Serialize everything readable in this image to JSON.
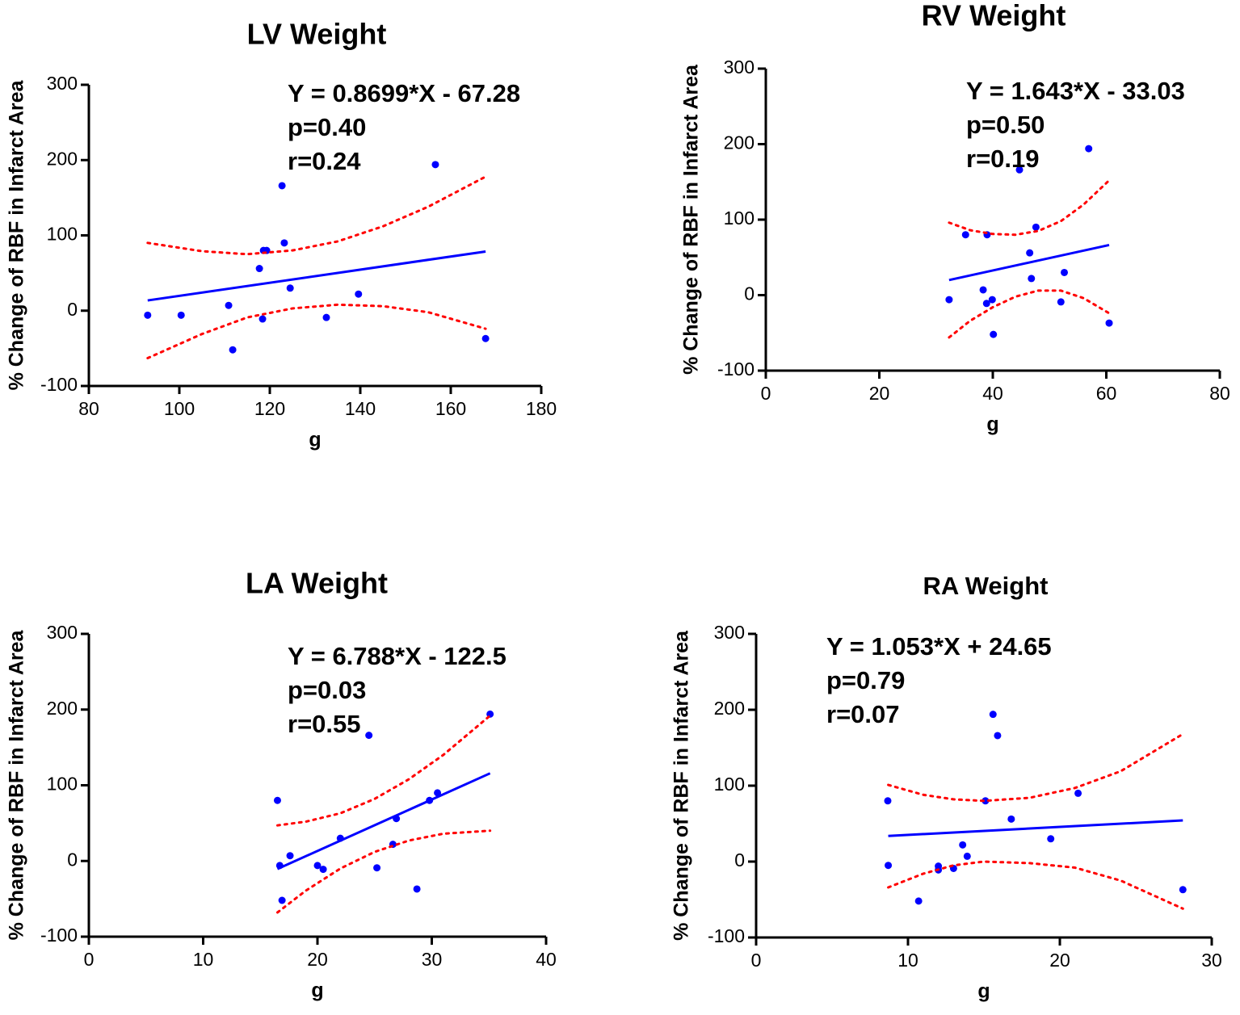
{
  "chart_data": [
    {
      "type": "scatter",
      "title": "LV Weight",
      "xlabel": "g",
      "ylabel": "% Change of RBF in Infarct Area",
      "annotations": [
        "Y = 0.8699*X - 67.28",
        "p=0.40",
        "r=0.24"
      ],
      "xlim": [
        80,
        180
      ],
      "xticks": [
        80,
        100,
        120,
        140,
        160,
        180
      ],
      "ylim": [
        -100,
        300
      ],
      "yticks": [
        -100,
        0,
        100,
        200,
        300
      ],
      "series": [
        {
          "mode": "markers",
          "color": "#0000ff",
          "x": [
            93.0,
            100.4,
            110.9,
            111.8,
            117.7,
            118.4,
            118.6,
            119.3,
            122.7,
            123.2,
            124.5,
            132.5,
            139.6,
            156.6,
            167.7
          ],
          "values": [
            -6,
            -6,
            7,
            -52,
            56,
            -11,
            80,
            80,
            166,
            90,
            30,
            -9,
            22,
            194,
            -37
          ]
        },
        {
          "mode": "line",
          "color": "#0000ff",
          "x": [
            93.0,
            167.7
          ],
          "values": [
            13.6,
            78.6
          ]
        },
        {
          "mode": "dotted",
          "color": "#ff0000",
          "x": [
            93,
            105,
            115,
            125,
            135,
            145,
            155,
            167.7
          ],
          "values": [
            90,
            79,
            75,
            80,
            92,
            112,
            138,
            178
          ]
        },
        {
          "mode": "dotted",
          "color": "#ff0000",
          "x": [
            93,
            105,
            115,
            125,
            135,
            145,
            155,
            167.7
          ],
          "values": [
            -63,
            -31,
            -9,
            3,
            8,
            6,
            -2,
            -24
          ]
        }
      ]
    },
    {
      "type": "scatter",
      "title": "RV Weight",
      "xlabel": "g",
      "ylabel": "% Change of RBF in Infarct Area",
      "annotations": [
        "Y = 1.643*X - 33.03",
        "p=0.50",
        "r=0.19"
      ],
      "xlim": [
        0,
        80
      ],
      "xticks": [
        0,
        20,
        40,
        60,
        80
      ],
      "ylim": [
        -100,
        300
      ],
      "yticks": [
        -100,
        0,
        100,
        200,
        300
      ],
      "series": [
        {
          "mode": "markers",
          "color": "#0000ff",
          "x": [
            32.3,
            35.2,
            38.3,
            38.9,
            39.0,
            39.9,
            40.1,
            44.7,
            46.5,
            46.8,
            47.6,
            52.0,
            52.6,
            56.9,
            60.5
          ],
          "values": [
            -6,
            80,
            7,
            -11,
            80,
            -6,
            -52,
            166,
            56,
            22,
            90,
            -9,
            30,
            194,
            -37
          ]
        },
        {
          "mode": "line",
          "color": "#0000ff",
          "x": [
            32.3,
            60.5
          ],
          "values": [
            20.0,
            66.4
          ]
        },
        {
          "mode": "dotted",
          "color": "#ff0000",
          "x": [
            32.3,
            36,
            40,
            44,
            48,
            52,
            56,
            60.5
          ],
          "values": [
            96,
            86,
            81,
            80,
            85,
            98,
            120,
            152
          ]
        },
        {
          "mode": "dotted",
          "color": "#ff0000",
          "x": [
            32.3,
            36,
            40,
            44,
            48,
            52,
            56,
            60.5
          ],
          "values": [
            -56,
            -34,
            -16,
            -2,
            6,
            6,
            -4,
            -24
          ]
        }
      ]
    },
    {
      "type": "scatter",
      "title": "LA Weight",
      "xlabel": "g",
      "ylabel": "% Change of RBF in Infarct Area",
      "annotations": [
        "Y = 6.788*X - 122.5",
        "p=0.03",
        "r=0.55"
      ],
      "xlim": [
        0,
        40
      ],
      "xticks": [
        0,
        10,
        20,
        30,
        40
      ],
      "ylim": [
        -100,
        300
      ],
      "yticks": [
        -100,
        0,
        100,
        200,
        300
      ],
      "series": [
        {
          "mode": "markers",
          "color": "#0000ff",
          "x": [
            16.5,
            16.7,
            16.9,
            17.6,
            20.0,
            20.5,
            22.0,
            24.5,
            25.2,
            26.6,
            26.9,
            28.7,
            29.8,
            30.5,
            35.1
          ],
          "values": [
            80,
            -6,
            -52,
            7,
            -6,
            -11,
            30,
            166,
            -9,
            22,
            56,
            -37,
            80,
            90,
            194
          ]
        },
        {
          "mode": "line",
          "color": "#0000ff",
          "x": [
            16.5,
            35.1
          ],
          "values": [
            -10.5,
            115.8
          ]
        },
        {
          "mode": "dotted",
          "color": "#ff0000",
          "x": [
            16.5,
            19,
            22,
            25,
            28,
            31,
            35.1
          ],
          "values": [
            47,
            52,
            63,
            82,
            108,
            140,
            192
          ]
        },
        {
          "mode": "dotted",
          "color": "#ff0000",
          "x": [
            16.5,
            19,
            22,
            25,
            28,
            31,
            35.1
          ],
          "values": [
            -68,
            -39,
            -10,
            12,
            27,
            36,
            40
          ]
        }
      ]
    },
    {
      "type": "scatter",
      "title": "RA Weight",
      "xlabel": "g",
      "ylabel": "% Change of RBF in Infarct Area",
      "annotations": [
        "Y = 1.053*X + 24.65",
        "p=0.79",
        "r=0.07"
      ],
      "xlim": [
        0,
        30
      ],
      "xticks": [
        0,
        10,
        20,
        30
      ],
      "ylim": [
        -100,
        300
      ],
      "yticks": [
        -100,
        0,
        100,
        200,
        300
      ],
      "series": [
        {
          "mode": "markers",
          "color": "#0000ff",
          "x": [
            8.67,
            8.7,
            10.7,
            12.0,
            12.0,
            13.0,
            13.6,
            13.9,
            15.1,
            15.6,
            15.9,
            16.8,
            19.4,
            21.2,
            28.1
          ],
          "values": [
            80,
            -5,
            -52,
            -6,
            -11,
            -9,
            22,
            7,
            80,
            194,
            166,
            56,
            30,
            90,
            -37
          ]
        },
        {
          "mode": "line",
          "color": "#0000ff",
          "x": [
            8.7,
            28.1
          ],
          "values": [
            33.8,
            54.2
          ]
        },
        {
          "mode": "dotted",
          "color": "#ff0000",
          "x": [
            8.7,
            11,
            13,
            15,
            18,
            21,
            24,
            28.1
          ],
          "values": [
            101,
            88,
            82,
            80,
            84,
            97,
            119,
            168
          ]
        },
        {
          "mode": "dotted",
          "color": "#ff0000",
          "x": [
            8.7,
            11,
            13,
            15,
            18,
            21,
            24,
            28.1
          ],
          "values": [
            -34,
            -16,
            -5,
            0,
            -2,
            -8,
            -25,
            -62
          ]
        }
      ]
    }
  ]
}
